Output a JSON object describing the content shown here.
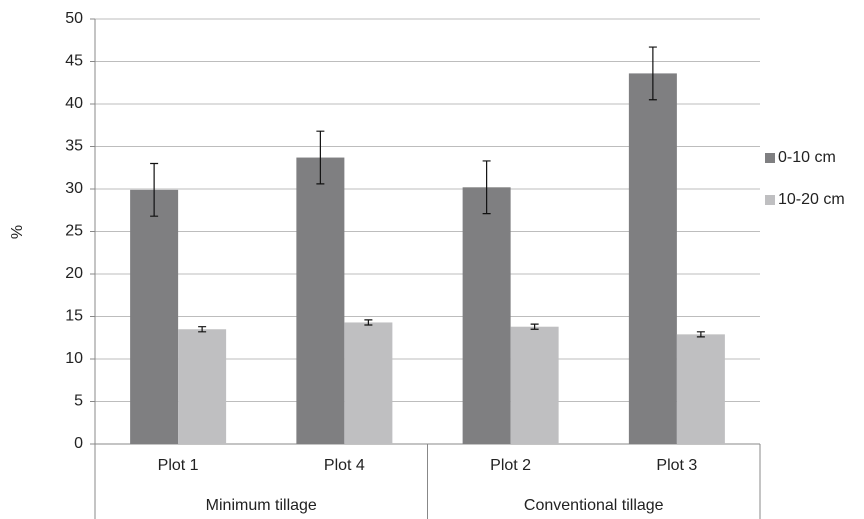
{
  "chart_data": {
    "type": "bar",
    "y_label": "%",
    "categories": [
      "Plot 1",
      "Plot 4",
      "Plot 2",
      "Plot 3"
    ],
    "category_groups": [
      "Minimum tillage",
      "Minimum tillage",
      "Conventional tillage",
      "Conventional tillage"
    ],
    "series": [
      {
        "name": "0-10 cm",
        "color": "#7f7f81",
        "values": [
          29.9,
          33.7,
          30.2,
          43.6
        ],
        "errors": [
          3.1,
          3.1,
          3.1,
          3.1
        ]
      },
      {
        "name": "10-20 cm",
        "color": "#bfbfc1",
        "values": [
          13.5,
          14.3,
          13.8,
          12.9
        ],
        "errors": [
          0.3,
          0.3,
          0.3,
          0.3
        ]
      }
    ],
    "ylim": [
      0,
      50
    ],
    "yticks": [
      0,
      5,
      10,
      15,
      20,
      25,
      30,
      35,
      40,
      45,
      50
    ],
    "grid": true,
    "legend": "right"
  }
}
